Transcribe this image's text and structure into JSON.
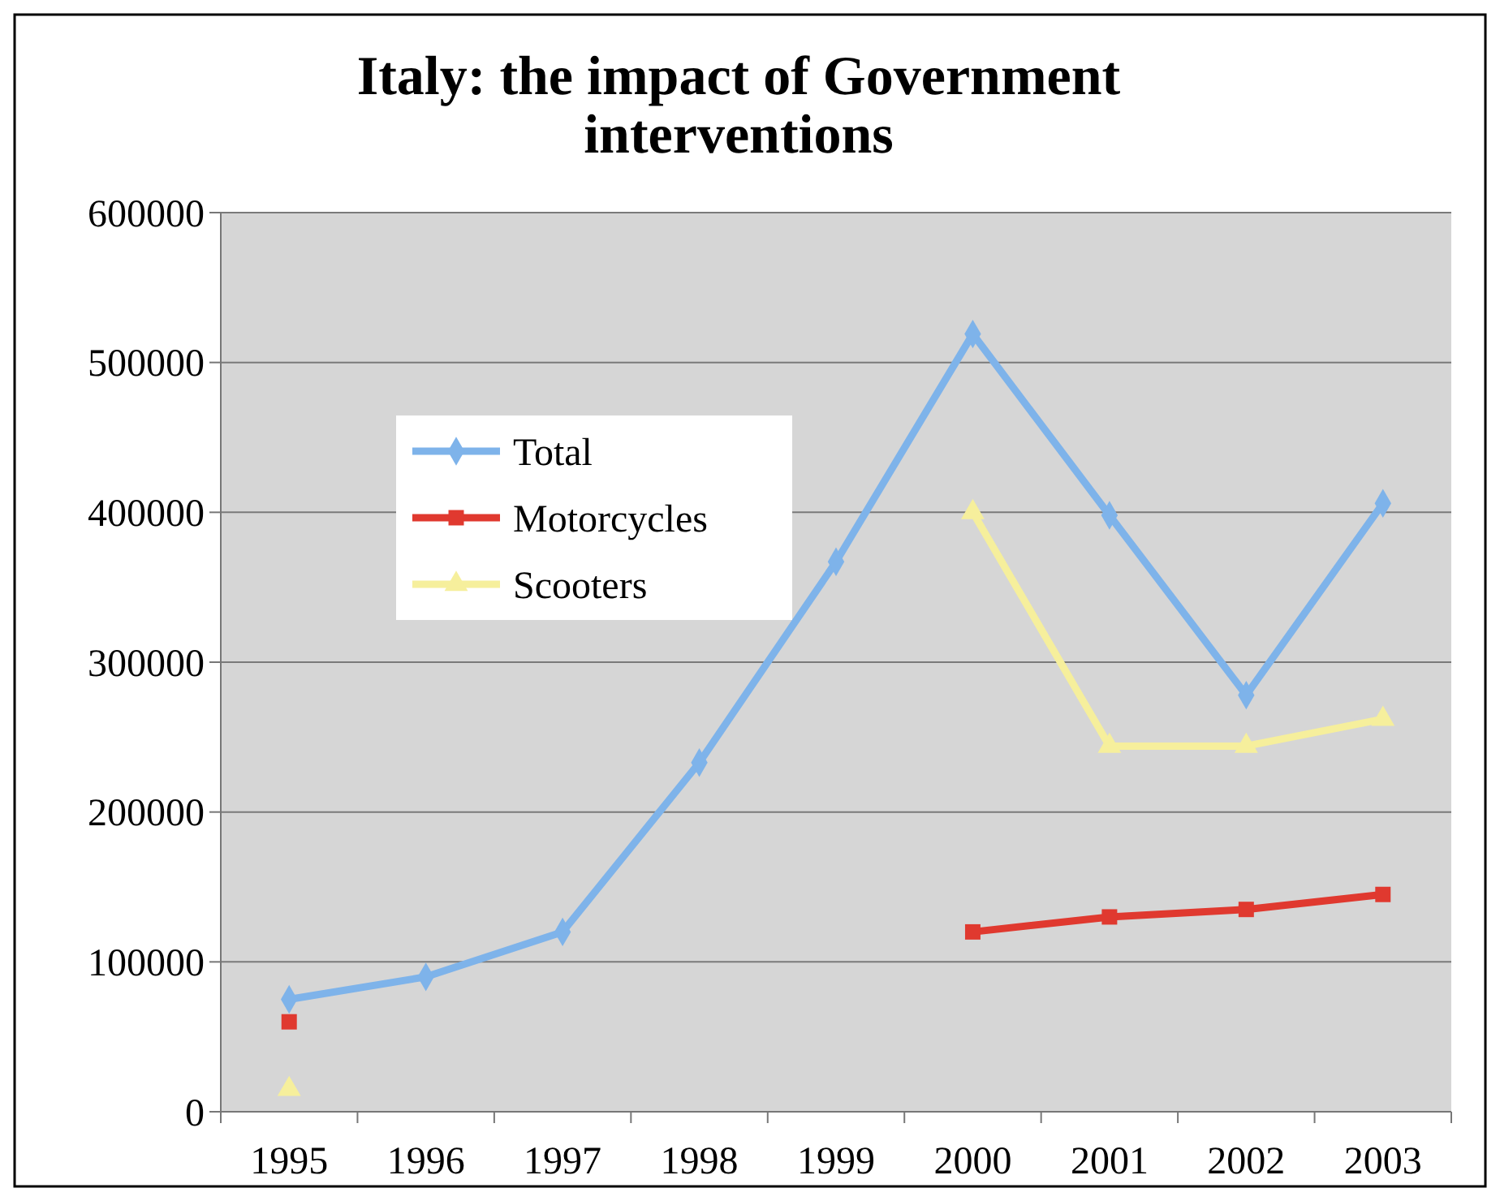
{
  "chart_data": {
    "type": "line",
    "title": "Italy: the impact of Government interventions",
    "categories": [
      "1995",
      "1996",
      "1997",
      "1998",
      "1999",
      "2000",
      "2001",
      "2002",
      "2003"
    ],
    "series": [
      {
        "name": "Total",
        "color": "#7eb3ea",
        "marker": "diamond",
        "values": [
          75000,
          90000,
          120000,
          233000,
          367000,
          519000,
          398000,
          278000,
          406000
        ]
      },
      {
        "name": "Motorcycles",
        "color": "#e0392f",
        "marker": "square",
        "values": [
          60000,
          null,
          null,
          null,
          null,
          120000,
          130000,
          135000,
          145000
        ]
      },
      {
        "name": "Scooters",
        "color": "#f6ef9c",
        "marker": "triangle",
        "values": [
          15000,
          null,
          null,
          null,
          null,
          400000,
          244000,
          244000,
          262000
        ]
      }
    ],
    "ylim": [
      0,
      600000
    ],
    "yticks": [
      0,
      100000,
      200000,
      300000,
      400000,
      500000,
      600000
    ],
    "grid": "y",
    "legend": "top left"
  }
}
